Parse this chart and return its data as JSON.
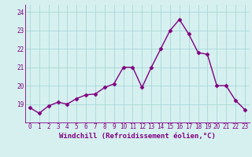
{
  "x": [
    0,
    1,
    2,
    3,
    4,
    5,
    6,
    7,
    8,
    9,
    10,
    11,
    12,
    13,
    14,
    15,
    16,
    17,
    18,
    19,
    20,
    21,
    22,
    23
  ],
  "y": [
    18.8,
    18.5,
    18.9,
    19.1,
    19.0,
    19.3,
    19.5,
    19.55,
    19.9,
    20.1,
    21.0,
    21.0,
    19.9,
    21.0,
    22.0,
    23.0,
    23.6,
    22.8,
    21.8,
    21.7,
    20.0,
    20.0,
    19.2,
    18.7
  ],
  "line_color": "#800080",
  "marker": "D",
  "marker_size": 2.5,
  "bg_color": "#d6f0f0",
  "grid_color": "#a8d8d8",
  "xlabel": "Windchill (Refroidissement éolien,°C)",
  "ylim": [
    18.0,
    24.4
  ],
  "xlim": [
    -0.5,
    23.5
  ],
  "yticks": [
    19,
    20,
    21,
    22,
    23,
    24
  ],
  "xticks": [
    0,
    1,
    2,
    3,
    4,
    5,
    6,
    7,
    8,
    9,
    10,
    11,
    12,
    13,
    14,
    15,
    16,
    17,
    18,
    19,
    20,
    21,
    22,
    23
  ],
  "tick_fontsize": 5.5,
  "xlabel_fontsize": 6.5,
  "line_width": 1.0
}
